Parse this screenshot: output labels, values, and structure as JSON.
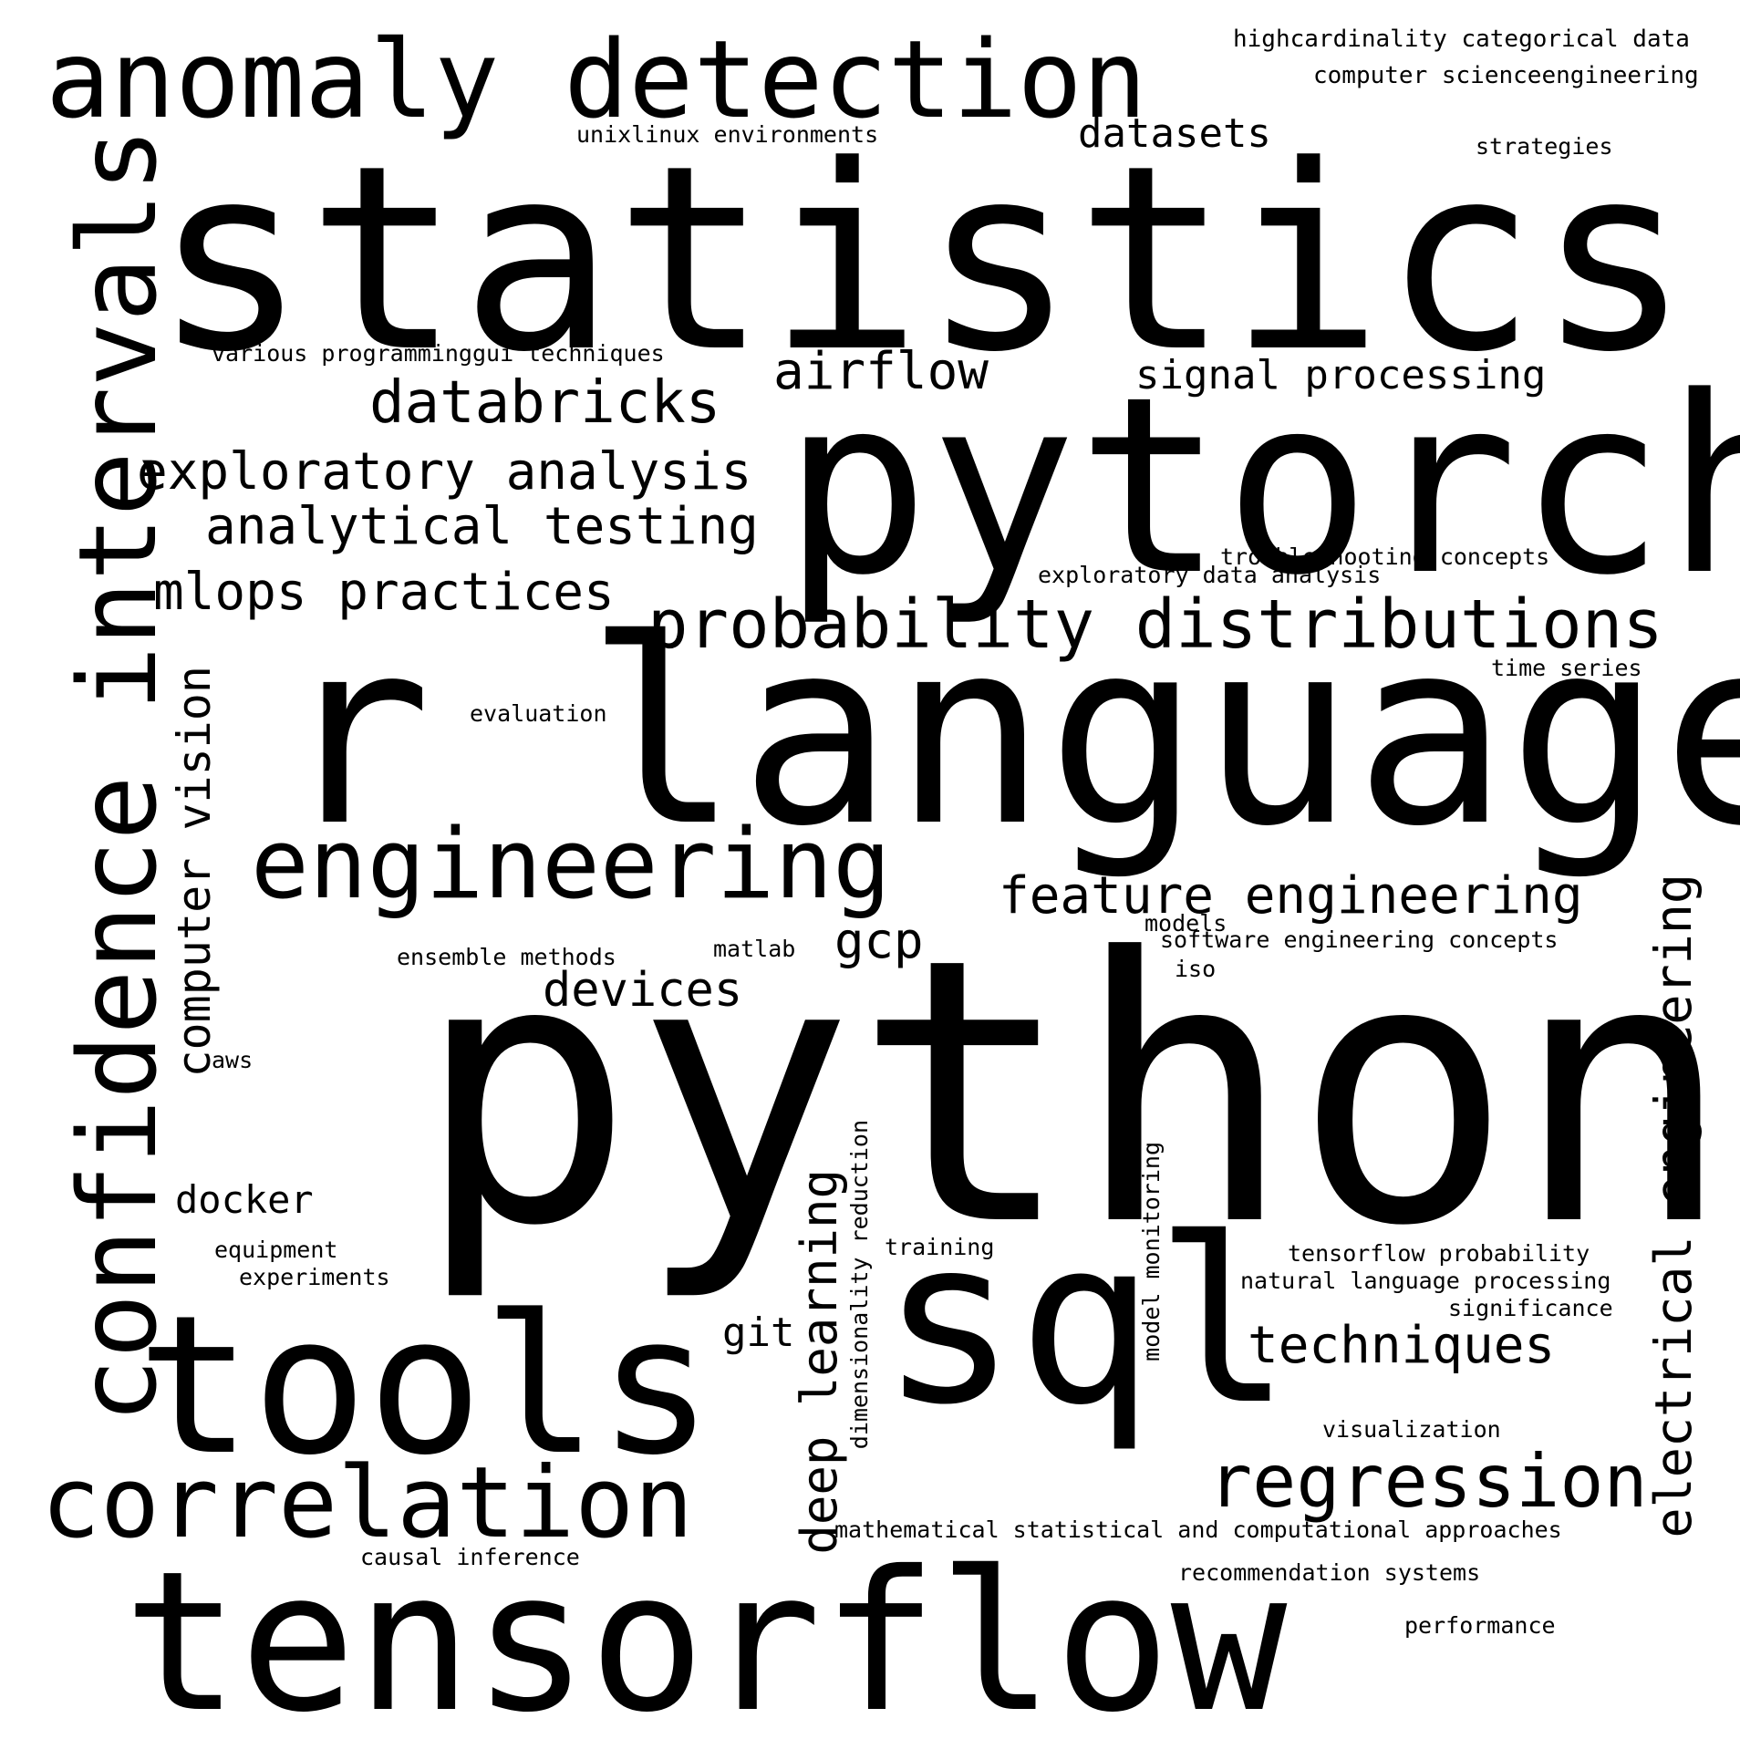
{
  "words": [
    {
      "id": "python",
      "text": "python"
    },
    {
      "id": "statistics",
      "text": "statistics"
    },
    {
      "id": "r-language",
      "text": "r language"
    },
    {
      "id": "pytorch",
      "text": "pytorch"
    },
    {
      "id": "tensorflow",
      "text": "tensorflow"
    },
    {
      "id": "sql",
      "text": "sql"
    },
    {
      "id": "tools",
      "text": "tools"
    },
    {
      "id": "confidence-intervals",
      "text": "confidence intervals"
    },
    {
      "id": "anomaly-detection",
      "text": "anomaly detection"
    },
    {
      "id": "engineering",
      "text": "engineering"
    },
    {
      "id": "correlation",
      "text": "correlation"
    },
    {
      "id": "probability-distributions",
      "text": "probability distributions"
    },
    {
      "id": "regression",
      "text": "regression"
    },
    {
      "id": "databricks",
      "text": "databricks"
    },
    {
      "id": "exploratory-analysis",
      "text": "exploratory analysis"
    },
    {
      "id": "analytical-testing",
      "text": "analytical testing"
    },
    {
      "id": "feature-engineering",
      "text": "feature engineering"
    },
    {
      "id": "electrical-engineering",
      "text": "electrical engineering"
    },
    {
      "id": "mlops-practices",
      "text": "mlops practices"
    },
    {
      "id": "airflow",
      "text": "airflow"
    },
    {
      "id": "deep-learning",
      "text": "deep learning"
    },
    {
      "id": "computer-vision",
      "text": "computer vision"
    },
    {
      "id": "techniques",
      "text": "techniques"
    },
    {
      "id": "signal-processing",
      "text": "signal processing"
    },
    {
      "id": "devices",
      "text": "devices"
    },
    {
      "id": "datasets",
      "text": "datasets"
    },
    {
      "id": "gcp",
      "text": "gcp"
    },
    {
      "id": "docker",
      "text": "docker"
    },
    {
      "id": "git",
      "text": "git"
    },
    {
      "id": "highcardinality-categorical-data",
      "text": "highcardinality categorical data"
    },
    {
      "id": "computer-scienceengineering",
      "text": "computer scienceengineering"
    },
    {
      "id": "unixlinux-environments",
      "text": "unixlinux environments"
    },
    {
      "id": "strategies",
      "text": "strategies"
    },
    {
      "id": "various-programminggui-techniques",
      "text": "various programminggui techniques"
    },
    {
      "id": "troubleshooting-concepts",
      "text": "troubleshooting concepts"
    },
    {
      "id": "exploratory-data-analysis",
      "text": "exploratory data analysis"
    },
    {
      "id": "time-series",
      "text": "time series"
    },
    {
      "id": "evaluation",
      "text": "evaluation"
    },
    {
      "id": "models",
      "text": "models"
    },
    {
      "id": "software-engineering-concepts",
      "text": "software engineering concepts"
    },
    {
      "id": "ensemble-methods",
      "text": "ensemble methods"
    },
    {
      "id": "matlab",
      "text": "matlab"
    },
    {
      "id": "iso",
      "text": "iso"
    },
    {
      "id": "aws",
      "text": "aws"
    },
    {
      "id": "dimensionality-reduction",
      "text": "dimensionality reduction"
    },
    {
      "id": "model-monitoring",
      "text": "model monitoring"
    },
    {
      "id": "training",
      "text": "training"
    },
    {
      "id": "tensorflow-probability",
      "text": "tensorflow probability"
    },
    {
      "id": "natural-language-processing",
      "text": "natural language processing"
    },
    {
      "id": "significance",
      "text": "significance"
    },
    {
      "id": "equipment",
      "text": "equipment"
    },
    {
      "id": "experiments",
      "text": "experiments"
    },
    {
      "id": "visualization",
      "text": "visualization"
    },
    {
      "id": "mathematical-statistical-and-computational-approaches",
      "text": "mathematical statistical and computational approaches"
    },
    {
      "id": "causal-inference",
      "text": "causal inference"
    },
    {
      "id": "recommendation-systems",
      "text": "recommendation systems"
    },
    {
      "id": "performance",
      "text": "performance"
    }
  ]
}
